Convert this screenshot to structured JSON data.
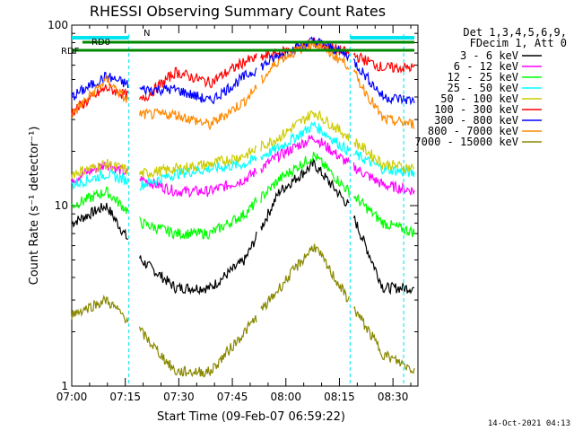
{
  "chart_data": {
    "type": "line",
    "title": "RHESSI Observing Summary Count Rates",
    "xlabel": "Start Time (09-Feb-07 06:59:22)",
    "ylabel": "Count Rate (s⁻¹ detector⁻¹)",
    "x_ticks": [
      "07:00",
      "07:15",
      "07:30",
      "07:45",
      "08:00",
      "08:15",
      "08:30"
    ],
    "y_ticks": [
      "1",
      "10",
      "100"
    ],
    "y_scale": "log",
    "ylim": [
      1,
      100
    ],
    "xlim": [
      "07:00",
      "08:37"
    ],
    "legend_header": [
      "Det 1,3,4,5,6,9,",
      "FDecim 1, Att 0"
    ],
    "legend_position": "right",
    "footer_date": "14-Oct-2021 04:13",
    "annotations": [
      "RD0",
      "RDF",
      "N"
    ],
    "series": [
      {
        "name": "3 - 6 keV",
        "color": "#000000",
        "values": [
          8,
          10,
          5,
          3.5,
          3.5,
          5,
          12,
          17,
          10,
          3.5,
          3.5
        ]
      },
      {
        "name": "6 - 12 keV",
        "color": "#ff00ff",
        "values": [
          14,
          17,
          14,
          12,
          12,
          14,
          19,
          24,
          17,
          13,
          12
        ]
      },
      {
        "name": "12 - 25 keV",
        "color": "#00ff00",
        "values": [
          10,
          12,
          8,
          7,
          7,
          9,
          14,
          19,
          12,
          8,
          7
        ]
      },
      {
        "name": "25 - 50 keV",
        "color": "#00ffff",
        "values": [
          13,
          15,
          13,
          15,
          16,
          17,
          21,
          28,
          20,
          16,
          15
        ]
      },
      {
        "name": "50 - 100 keV",
        "color": "#cccc00",
        "values": [
          15,
          17,
          15,
          16,
          17,
          19,
          24,
          33,
          24,
          17,
          16
        ]
      },
      {
        "name": "100 - 300 keV",
        "color": "#ff0000",
        "values": [
          33,
          45,
          38,
          55,
          48,
          63,
          70,
          80,
          70,
          58,
          58
        ]
      },
      {
        "name": "300 - 800 keV",
        "color": "#0000ff",
        "values": [
          40,
          52,
          44,
          44,
          38,
          52,
          68,
          82,
          68,
          40,
          38
        ]
      },
      {
        "name": "800 - 7000 keV",
        "color": "#ff8800",
        "values": [
          32,
          50,
          32,
          32,
          28,
          38,
          65,
          80,
          60,
          30,
          28
        ]
      },
      {
        "name": "7000 - 15000 keV",
        "color": "#888800",
        "values": [
          2.5,
          3,
          2,
          1.2,
          1.2,
          2,
          3.5,
          6,
          3,
          1.5,
          1.2
        ]
      }
    ]
  }
}
